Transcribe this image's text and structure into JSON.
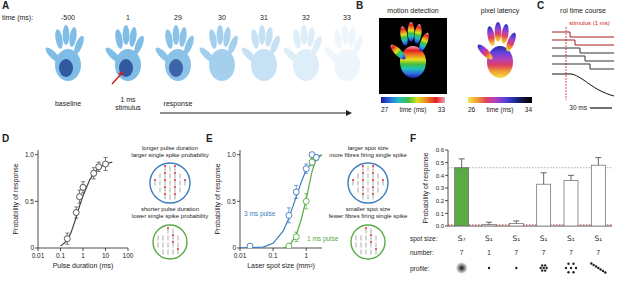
{
  "panels": {
    "A": {
      "label": "A",
      "time_title": "time (ms):",
      "times": [
        -500,
        1,
        29,
        30,
        31,
        32,
        33
      ],
      "captions": [
        "baseline",
        "1 ms",
        "stimulus",
        "response"
      ]
    },
    "B": {
      "label": "B",
      "images": [
        {
          "title": "motion detection",
          "min": 27,
          "scale_label": "time (ms)",
          "max": 33
        },
        {
          "title": "pixel latency",
          "min": 26,
          "scale_label": "time (ms)",
          "max": 34
        }
      ]
    },
    "C": {
      "label": "C",
      "title": "roi time course",
      "stimulus": "stimulus (1 ms)",
      "scale_bar": "30 ms"
    }
  },
  "chart_data": [
    {
      "panel": "D",
      "type": "scatter",
      "log": "x",
      "marker": "circle",
      "color": "#444444",
      "xlabel": "Pulse duration (ms)",
      "ylabel": "Probability of response",
      "x": [
        0.2,
        0.5,
        0.7,
        1,
        3,
        5,
        10
      ],
      "values": [
        0.1,
        0.38,
        0.55,
        0.65,
        0.8,
        0.87,
        0.9
      ],
      "errors": [
        0.06,
        0.06,
        0.07,
        0.06,
        0.06,
        0.05,
        0.07
      ],
      "fit_x": [
        0.1,
        0.2,
        0.3,
        0.5,
        0.7,
        1,
        2,
        3,
        5,
        10,
        20
      ],
      "fit_values": [
        0.02,
        0.08,
        0.17,
        0.33,
        0.45,
        0.56,
        0.73,
        0.8,
        0.86,
        0.9,
        0.92
      ],
      "xlim": [
        0.01,
        100
      ],
      "xticks": [
        0.01,
        0.1,
        1,
        10,
        100
      ],
      "ylim": [
        0,
        1.05
      ],
      "yticks": [
        0,
        0.5,
        {
          "value": 1,
          "label": "1.0"
        }
      ],
      "annotations": [
        "longer pulse duration",
        "larger single spike probability",
        "shorter pulse duration",
        "lower single spike probability"
      ]
    },
    {
      "panel": "E",
      "type": "scatter",
      "log": "x",
      "xlabel": "Laser spot size (mm²)",
      "ylabel": "Probability of response",
      "series": [
        {
          "name": "3 ms pulse",
          "color": "#3b7bbf",
          "marker": "circle",
          "x": [
            0.02,
            0.3,
            0.5,
            1,
            1.5,
            2
          ],
          "values": [
            0.02,
            0.35,
            0.6,
            0.85,
            1.0,
            0.97
          ],
          "errors": [
            0.02,
            0.08,
            0.07,
            0.05,
            0.02,
            0.03
          ],
          "fit_x": [
            0.01,
            0.05,
            0.1,
            0.2,
            0.3,
            0.5,
            0.7,
            1,
            2,
            3
          ],
          "fit_values": [
            0,
            0.01,
            0.05,
            0.18,
            0.32,
            0.55,
            0.7,
            0.84,
            0.97,
            1.0
          ]
        },
        {
          "name": "1 ms pulse",
          "color": "#5aaa46",
          "marker": "circle",
          "x": [
            0.3,
            0.5,
            1,
            1.5
          ],
          "values": [
            0.02,
            0.12,
            0.5,
            0.92
          ],
          "errors": [
            0.02,
            0.05,
            0.08,
            0.04
          ],
          "fit_x": [
            0.2,
            0.3,
            0.5,
            0.7,
            1,
            1.5,
            2,
            3
          ],
          "fit_values": [
            0,
            0.02,
            0.14,
            0.3,
            0.52,
            0.82,
            0.95,
            1.0
          ]
        }
      ],
      "xlim": [
        0.01,
        3
      ],
      "xticks": [
        0.01,
        0.1,
        1
      ],
      "ylim": [
        0,
        1.05
      ],
      "yticks": [
        0,
        0.5,
        {
          "value": 1,
          "label": "1.0"
        }
      ],
      "annotations": [
        "larger spot size",
        "more fibres firing single spike",
        "smaller spot size",
        "fewer fibres firing single spike"
      ]
    },
    {
      "panel": "F",
      "type": "bar",
      "ylabel": "Probability of response",
      "categories": [
        "S₇",
        "S₁",
        "S₁",
        "S₁",
        "S₁",
        "S₁"
      ],
      "numbers": [
        7,
        1,
        7,
        7,
        7,
        7
      ],
      "values": [
        0.46,
        0.01,
        0.02,
        0.33,
        0.36,
        0.48
      ],
      "errors": [
        0.07,
        0.02,
        0.02,
        0.09,
        0.04,
        0.06
      ],
      "colors": [
        "#5aaa46",
        "#ffffff",
        "#ffffff",
        "#ffffff",
        "#ffffff",
        "#ffffff"
      ],
      "reference_lines": [
        0.46,
        0.01
      ],
      "row_labels": [
        "spot size:",
        "number:",
        "profile:"
      ],
      "ylim": [
        0,
        0.6
      ],
      "yticks": [
        {
          "value": 0,
          "label": "0.0"
        },
        {
          "value": 0.1,
          "label": "0.1"
        },
        {
          "value": 0.2,
          "label": "0.2"
        },
        {
          "value": 0.3,
          "label": "0.3"
        },
        {
          "value": 0.4,
          "label": "0.4"
        },
        {
          "value": 0.5,
          "label": "0.5"
        },
        {
          "value": 0.6,
          "label": "0.6"
        }
      ]
    }
  ]
}
